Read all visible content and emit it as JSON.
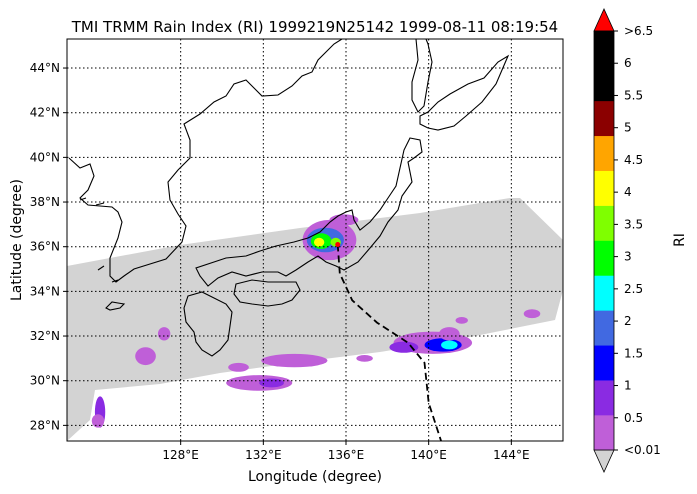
{
  "chart_data": {
    "type": "heatmap",
    "title": "TMI TRMM Rain Index (RI) 1999219N25142 1999-08-11 08:19:54",
    "xlabel": "Longitude (degree)",
    "ylabel": "Latitude (degree)",
    "xlim": [
      122.5,
      146.5
    ],
    "ylim": [
      27.3,
      45.3
    ],
    "x_ticks": [
      128,
      132,
      136,
      140,
      144
    ],
    "x_tick_labels": [
      "128°E",
      "132°E",
      "136°E",
      "140°E",
      "144°E"
    ],
    "y_ticks": [
      28,
      30,
      32,
      34,
      36,
      38,
      40,
      42,
      44
    ],
    "y_tick_labels": [
      "28°N",
      "30°N",
      "32°N",
      "34°N",
      "36°N",
      "38°N",
      "40°N",
      "42°N",
      "44°N"
    ],
    "grid": "dotted",
    "swath_color": "#d3d3d3",
    "colorbar": {
      "label": "RI",
      "levels": [
        "<0.01",
        "0.5",
        "1",
        "1.5",
        "2",
        "2.5",
        "3",
        "3.5",
        "4",
        "4.5",
        "5",
        "5.5",
        "6",
        ">6.5"
      ],
      "colors": [
        "#bf5fd8",
        "#8a2be2",
        "#0000ff",
        "#4169e1",
        "#00ffff",
        "#00ff00",
        "#7fff00",
        "#ffff00",
        "#ffa500",
        "#8b0000",
        "#000000",
        "#000000"
      ],
      "under_color": "#d3d3d3",
      "over_color": "#ff0000"
    },
    "storm_track": {
      "style": "dashed",
      "points": [
        [
          135.6,
          36.1
        ],
        [
          135.7,
          34.8
        ],
        [
          136.3,
          33.6
        ],
        [
          137.5,
          32.6
        ],
        [
          139.0,
          31.7
        ],
        [
          139.8,
          30.8
        ],
        [
          140.0,
          29.0
        ],
        [
          140.6,
          27.3
        ]
      ]
    },
    "storm_center": {
      "lon": 135.6,
      "lat": 36.1,
      "color": "#ff0000"
    },
    "rain_cells": [
      {
        "lon": 135.2,
        "lat": 36.3,
        "rlon": 1.3,
        "rlat": 0.9,
        "level": 0
      },
      {
        "lon": 135.0,
        "lat": 36.3,
        "rlon": 0.9,
        "rlat": 0.55,
        "level": 3
      },
      {
        "lon": 134.8,
        "lat": 36.25,
        "rlon": 0.5,
        "rlat": 0.35,
        "level": 5
      },
      {
        "lon": 134.7,
        "lat": 36.2,
        "rlon": 0.25,
        "rlat": 0.2,
        "level": 7
      },
      {
        "lon": 135.5,
        "lat": 36.2,
        "rlon": 0.25,
        "rlat": 0.2,
        "level": 6
      },
      {
        "lon": 135.9,
        "lat": 37.2,
        "rlon": 0.7,
        "rlat": 0.25,
        "level": 0
      },
      {
        "lon": 140.2,
        "lat": 31.7,
        "rlon": 1.9,
        "rlat": 0.5,
        "level": 0
      },
      {
        "lon": 140.7,
        "lat": 31.6,
        "rlon": 0.9,
        "rlat": 0.3,
        "level": 2
      },
      {
        "lon": 141.0,
        "lat": 31.6,
        "rlon": 0.4,
        "rlat": 0.2,
        "level": 4
      },
      {
        "lon": 141.0,
        "lat": 32.1,
        "rlon": 0.5,
        "rlat": 0.3,
        "level": 0
      },
      {
        "lon": 138.8,
        "lat": 31.5,
        "rlon": 0.7,
        "rlat": 0.25,
        "level": 1
      },
      {
        "lon": 133.5,
        "lat": 30.9,
        "rlon": 1.6,
        "rlat": 0.3,
        "level": 0
      },
      {
        "lon": 131.8,
        "lat": 29.9,
        "rlon": 1.6,
        "rlat": 0.35,
        "level": 0
      },
      {
        "lon": 132.4,
        "lat": 29.9,
        "rlon": 0.6,
        "rlat": 0.2,
        "level": 1
      },
      {
        "lon": 126.3,
        "lat": 31.1,
        "rlon": 0.5,
        "rlat": 0.4,
        "level": 0
      },
      {
        "lon": 124.1,
        "lat": 28.6,
        "rlon": 0.25,
        "rlat": 0.7,
        "level": 1
      },
      {
        "lon": 124.0,
        "lat": 28.2,
        "rlon": 0.3,
        "rlat": 0.3,
        "level": 0
      },
      {
        "lon": 130.8,
        "lat": 30.6,
        "rlon": 0.5,
        "rlat": 0.2,
        "level": 0
      },
      {
        "lon": 145.0,
        "lat": 33.0,
        "rlon": 0.4,
        "rlat": 0.2,
        "level": 0
      },
      {
        "lon": 127.2,
        "lat": 32.1,
        "rlon": 0.3,
        "rlat": 0.3,
        "level": 0
      },
      {
        "lon": 141.6,
        "lat": 32.7,
        "rlon": 0.3,
        "rlat": 0.15,
        "level": 0
      },
      {
        "lon": 136.9,
        "lat": 31.0,
        "rlon": 0.4,
        "rlat": 0.15,
        "level": 0
      }
    ]
  }
}
